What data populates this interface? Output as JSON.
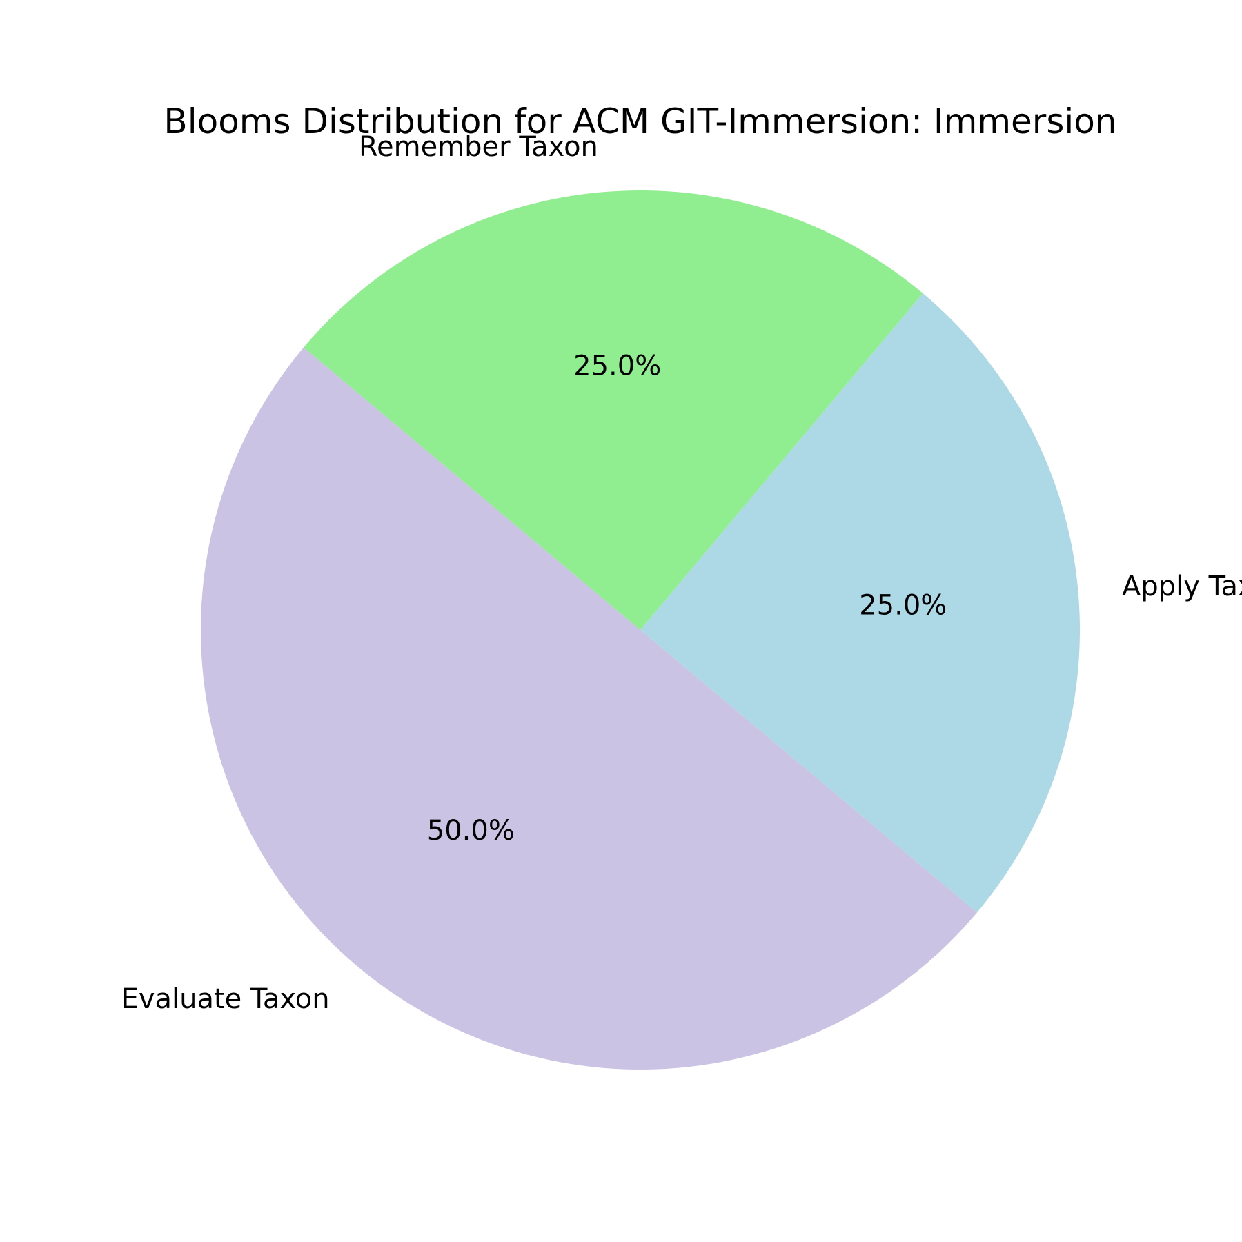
{
  "chart_data": {
    "type": "pie",
    "title": "Blooms Distribution for ACM GIT-Immersion: Immersion",
    "categories": [
      "Evaluate Taxon",
      "Apply Taxon",
      "Remember Taxon"
    ],
    "values": [
      50.0,
      25.0,
      25.0
    ],
    "percent_labels": [
      "50.0%",
      "25.0%",
      "25.0%"
    ],
    "colors": [
      "#cbc3e3",
      "#add8e6",
      "#90ee90"
    ],
    "start_angle_deg": 140,
    "direction": "counterclockwise",
    "legend": "none"
  }
}
